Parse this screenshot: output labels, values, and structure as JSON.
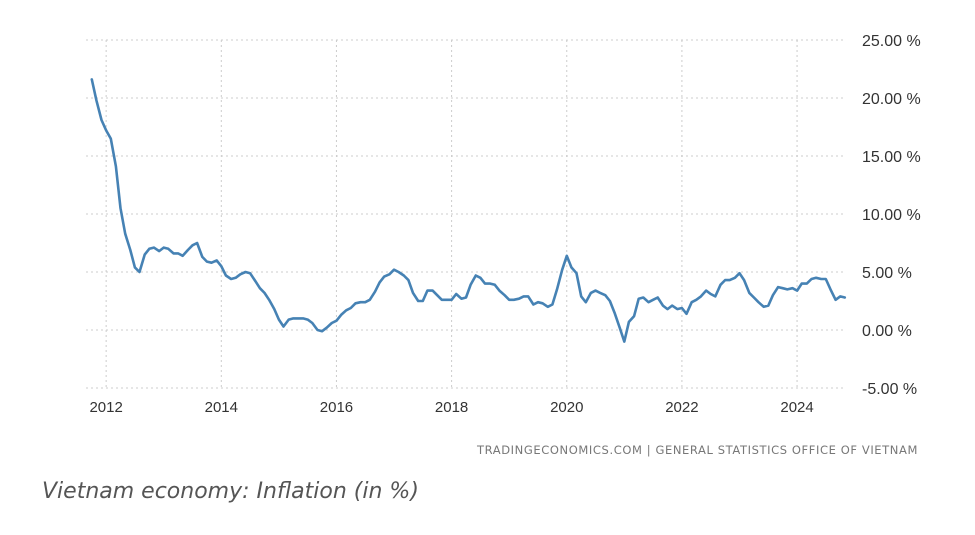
{
  "source_text": "TRADINGECONOMICS.COM  |  GENERAL STATISTICS OFFICE OF VIETNAM",
  "caption": "Vietnam economy: Inflation (in %)",
  "chart_data": {
    "type": "line",
    "title": "",
    "xlabel": "",
    "ylabel": "",
    "ylim": [
      -5,
      25
    ],
    "xlim": [
      2011.65,
      2024.85
    ],
    "yticks": [
      25,
      20,
      15,
      10,
      5,
      0,
      -5
    ],
    "ytick_labels": [
      "25.00 %",
      "20.00 %",
      "15.00 %",
      "10.00 %",
      "5.00 %",
      "0.00 %",
      "-5.00 %"
    ],
    "xticks": [
      2012,
      2014,
      2016,
      2018,
      2020,
      2022,
      2024
    ],
    "xtick_labels": [
      "2012",
      "2014",
      "2016",
      "2018",
      "2020",
      "2022",
      "2024"
    ],
    "grid": true,
    "line_color": "#4682b4",
    "series": [
      {
        "x": [
          2011.75,
          2011.83,
          2011.92,
          2012.0,
          2012.08,
          2012.17,
          2012.25,
          2012.33,
          2012.42,
          2012.5,
          2012.58,
          2012.67,
          2012.75,
          2012.83,
          2012.92,
          2013.0,
          2013.08,
          2013.17,
          2013.25,
          2013.33,
          2013.42,
          2013.5,
          2013.58,
          2013.67,
          2013.75,
          2013.83,
          2013.92,
          2014.0,
          2014.08,
          2014.17,
          2014.25,
          2014.33,
          2014.42,
          2014.5,
          2014.58,
          2014.67,
          2014.75,
          2014.83,
          2014.92,
          2015.0,
          2015.08,
          2015.17,
          2015.25,
          2015.33,
          2015.42,
          2015.5,
          2015.58,
          2015.67,
          2015.75,
          2015.83,
          2015.92,
          2016.0,
          2016.08,
          2016.17,
          2016.25,
          2016.33,
          2016.42,
          2016.5,
          2016.58,
          2016.67,
          2016.75,
          2016.83,
          2016.92,
          2017.0,
          2017.08,
          2017.17,
          2017.25,
          2017.33,
          2017.42,
          2017.5,
          2017.58,
          2017.67,
          2017.75,
          2017.83,
          2017.92,
          2018.0,
          2018.08,
          2018.17,
          2018.25,
          2018.33,
          2018.42,
          2018.5,
          2018.58,
          2018.67,
          2018.75,
          2018.83,
          2018.92,
          2019.0,
          2019.08,
          2019.17,
          2019.25,
          2019.33,
          2019.42,
          2019.5,
          2019.58,
          2019.67,
          2019.75,
          2019.83,
          2019.92,
          2020.0,
          2020.08,
          2020.17,
          2020.25,
          2020.33,
          2020.42,
          2020.5,
          2020.58,
          2020.67,
          2020.75,
          2020.83,
          2020.92,
          2021.0,
          2021.08,
          2021.17,
          2021.25,
          2021.33,
          2021.42,
          2021.5,
          2021.58,
          2021.67,
          2021.75,
          2021.83,
          2021.92,
          2022.0,
          2022.08,
          2022.17,
          2022.25,
          2022.33,
          2022.42,
          2022.5,
          2022.58,
          2022.67,
          2022.75,
          2022.83,
          2022.92,
          2023.0,
          2023.08,
          2023.17,
          2023.25,
          2023.33,
          2023.42,
          2023.5,
          2023.58,
          2023.67,
          2023.75,
          2023.83,
          2023.92,
          2024.0,
          2024.08,
          2024.17,
          2024.25,
          2024.33,
          2024.42,
          2024.5,
          2024.58,
          2024.67,
          2024.75,
          2024.83
        ],
        "values": [
          21.6,
          19.8,
          18.1,
          17.2,
          16.5,
          14.1,
          10.5,
          8.3,
          6.9,
          5.4,
          5.0,
          6.5,
          7.0,
          7.1,
          6.8,
          7.1,
          7.0,
          6.6,
          6.6,
          6.4,
          6.9,
          7.3,
          7.5,
          6.3,
          5.9,
          5.8,
          6.0,
          5.5,
          4.7,
          4.4,
          4.5,
          4.8,
          5.0,
          4.9,
          4.3,
          3.6,
          3.2,
          2.6,
          1.8,
          0.9,
          0.3,
          0.9,
          1.0,
          1.0,
          1.0,
          0.9,
          0.6,
          0.0,
          -0.1,
          0.2,
          0.6,
          0.8,
          1.3,
          1.7,
          1.9,
          2.3,
          2.4,
          2.4,
          2.6,
          3.3,
          4.1,
          4.6,
          4.8,
          5.2,
          5.0,
          4.7,
          4.3,
          3.2,
          2.5,
          2.5,
          3.4,
          3.4,
          3.0,
          2.6,
          2.6,
          2.6,
          3.1,
          2.7,
          2.8,
          3.9,
          4.7,
          4.5,
          4.0,
          4.0,
          3.9,
          3.4,
          3.0,
          2.6,
          2.6,
          2.7,
          2.9,
          2.9,
          2.2,
          2.4,
          2.3,
          2.0,
          2.2,
          3.5,
          5.2,
          6.4,
          5.4,
          4.9,
          2.9,
          2.4,
          3.2,
          3.4,
          3.2,
          3.0,
          2.5,
          1.5,
          0.2,
          -1.0,
          0.7,
          1.2,
          2.7,
          2.8,
          2.4,
          2.6,
          2.8,
          2.1,
          1.8,
          2.1,
          1.8,
          1.9,
          1.4,
          2.4,
          2.6,
          2.9,
          3.4,
          3.1,
          2.9,
          3.9,
          4.3,
          4.3,
          4.5,
          4.9,
          4.3,
          3.2,
          2.8,
          2.4,
          2.0,
          2.1,
          3.0,
          3.7,
          3.6,
          3.5,
          3.6,
          3.4,
          4.0,
          4.0,
          4.4,
          4.5,
          4.4,
          4.4,
          3.5,
          2.6,
          2.9,
          2.8
        ]
      }
    ]
  }
}
